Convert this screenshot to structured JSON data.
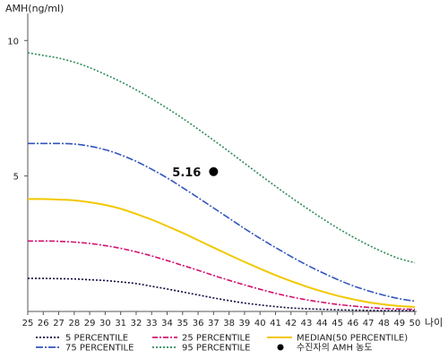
{
  "chart_data": {
    "type": "line",
    "ylabel": "AMH(ng/ml)",
    "xlabel": "나이",
    "xlim": [
      25,
      50
    ],
    "ylim": [
      0,
      11
    ],
    "x_ticks": [
      25,
      26,
      27,
      28,
      29,
      30,
      31,
      32,
      33,
      34,
      35,
      36,
      37,
      38,
      39,
      40,
      41,
      42,
      43,
      44,
      45,
      46,
      47,
      48,
      49,
      50
    ],
    "y_ticks": [
      5,
      10
    ],
    "x": [
      25,
      26,
      27,
      28,
      29,
      30,
      31,
      32,
      33,
      34,
      35,
      36,
      37,
      38,
      39,
      40,
      41,
      42,
      43,
      44,
      45,
      46,
      47,
      48,
      49,
      50
    ],
    "series": [
      {
        "name": "5 PERCENTILE",
        "color": "#0a0a3c",
        "dash": "2,2",
        "values": [
          1.22,
          1.22,
          1.21,
          1.2,
          1.17,
          1.14,
          1.09,
          1.03,
          0.93,
          0.83,
          0.72,
          0.61,
          0.5,
          0.4,
          0.31,
          0.24,
          0.18,
          0.13,
          0.1,
          0.08,
          0.06,
          0.05,
          0.04,
          0.03,
          0.03,
          0.03
        ]
      },
      {
        "name": "25 PERCENTILE",
        "color": "#d6106f",
        "dash": "6,2,2,2",
        "values": [
          2.6,
          2.6,
          2.59,
          2.56,
          2.51,
          2.43,
          2.33,
          2.2,
          2.05,
          1.88,
          1.7,
          1.52,
          1.33,
          1.15,
          0.98,
          0.82,
          0.67,
          0.54,
          0.43,
          0.34,
          0.26,
          0.2,
          0.15,
          0.11,
          0.09,
          0.08
        ]
      },
      {
        "name": "MEDIAN(50 PERCENTILE)",
        "color": "#f2c800",
        "dash": "",
        "values": [
          4.15,
          4.15,
          4.13,
          4.1,
          4.03,
          3.93,
          3.79,
          3.6,
          3.39,
          3.15,
          2.9,
          2.63,
          2.36,
          2.09,
          1.83,
          1.58,
          1.34,
          1.12,
          0.92,
          0.74,
          0.58,
          0.45,
          0.34,
          0.26,
          0.2,
          0.17
        ]
      },
      {
        "name": "75 PERCENTILE",
        "color": "#3355bb",
        "dash": "8,2,2,2",
        "values": [
          6.2,
          6.2,
          6.2,
          6.18,
          6.1,
          5.97,
          5.78,
          5.54,
          5.25,
          4.93,
          4.57,
          4.2,
          3.82,
          3.44,
          3.06,
          2.7,
          2.36,
          2.03,
          1.72,
          1.44,
          1.18,
          0.95,
          0.76,
          0.6,
          0.47,
          0.38
        ]
      },
      {
        "name": "95 PERCENTILE",
        "color": "#2e8b57",
        "dash": "2,2",
        "values": [
          9.55,
          9.45,
          9.35,
          9.2,
          9.0,
          8.75,
          8.48,
          8.18,
          7.85,
          7.5,
          7.13,
          6.73,
          6.32,
          5.9,
          5.47,
          5.04,
          4.62,
          4.21,
          3.82,
          3.44,
          3.08,
          2.75,
          2.45,
          2.18,
          1.95,
          1.8
        ]
      }
    ],
    "marker": {
      "label": "수진자의 AMH 농도",
      "x": 37,
      "y": 5.16,
      "text": "5.16",
      "color": "#000000"
    },
    "grid": false,
    "legend_position": "bottom"
  }
}
